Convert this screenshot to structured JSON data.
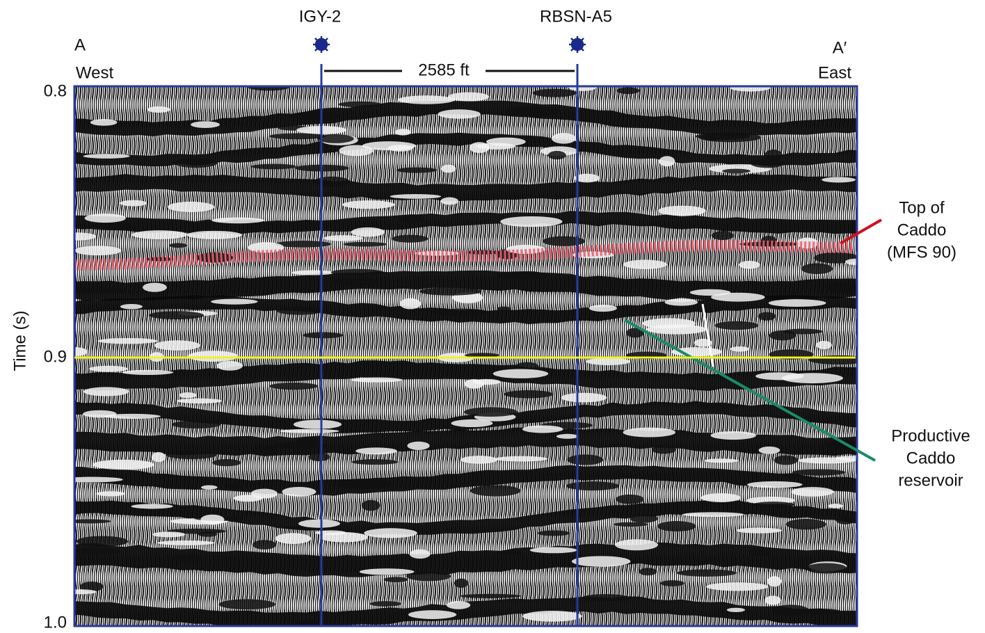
{
  "wells": [
    {
      "name": "IGY-2"
    },
    {
      "name": "RBSN-A5"
    }
  ],
  "section": {
    "west_label": "A",
    "west": "West",
    "east_label": "A′",
    "east": "East",
    "distance": "2585 ft"
  },
  "axis": {
    "title": "Time (s)",
    "ylim": [
      0.8,
      1.0
    ],
    "ticks": [
      {
        "value": 0.8,
        "label": "0.8"
      },
      {
        "value": 0.9,
        "label": "0.9"
      },
      {
        "value": 1.0,
        "label": "1.0"
      }
    ],
    "marker_line": 0.9
  },
  "annotations": {
    "top_caddo": [
      "Top  of",
      "Caddo",
      "(MFS  90)"
    ],
    "reservoir": [
      "Productive",
      "Caddo",
      "reservoir"
    ]
  }
}
